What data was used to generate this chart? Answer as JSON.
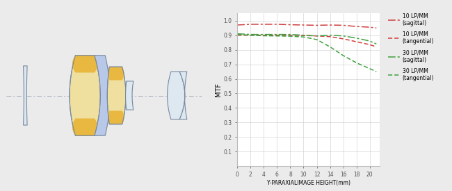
{
  "mtf_x": [
    0,
    2,
    4,
    6,
    8,
    10,
    12,
    14,
    16,
    18,
    20,
    21
  ],
  "line_10s": [
    0.97,
    0.975,
    0.975,
    0.975,
    0.972,
    0.97,
    0.968,
    0.97,
    0.968,
    0.96,
    0.955,
    0.95
  ],
  "line_10t": [
    0.9,
    0.9,
    0.9,
    0.9,
    0.9,
    0.898,
    0.895,
    0.89,
    0.875,
    0.855,
    0.835,
    0.82
  ],
  "line_30s": [
    0.91,
    0.905,
    0.905,
    0.905,
    0.905,
    0.9,
    0.895,
    0.9,
    0.895,
    0.88,
    0.86,
    0.84
  ],
  "line_30t": [
    0.905,
    0.9,
    0.896,
    0.895,
    0.893,
    0.888,
    0.87,
    0.82,
    0.76,
    0.71,
    0.67,
    0.65
  ],
  "color_red": "#d04040",
  "color_green": "#40a040",
  "bg_color": "#ebebeb",
  "plot_bg": "#ffffff",
  "ylabel": "MTF",
  "xlabel": "Y-PARAXIALIMAGE HEIGHT(mm)",
  "legend_10s": "10 LP/MM\n(sagittal)",
  "legend_10t": "10 LP/MM\n(tangential)",
  "legend_30s": "30 LP/MM\n(sagittal)",
  "legend_30t": "30 LP/MM\n(tangential)",
  "ylim": [
    0,
    1.05
  ],
  "xlim": [
    0,
    21.5
  ],
  "yticks": [
    0.1,
    0.2,
    0.3,
    0.4,
    0.5,
    0.6,
    0.7,
    0.8,
    0.9,
    1.0
  ],
  "xticks": [
    0,
    2,
    4,
    6,
    8,
    10,
    12,
    14,
    16,
    18,
    20
  ],
  "lens_bg": "#ebebeb",
  "lens_yellow_dark": "#e8b840",
  "lens_yellow_light": "#f0e0a0",
  "lens_blue": "#b8c8e8",
  "lens_white": "#dde8f0",
  "lens_outline": "#7888a0"
}
